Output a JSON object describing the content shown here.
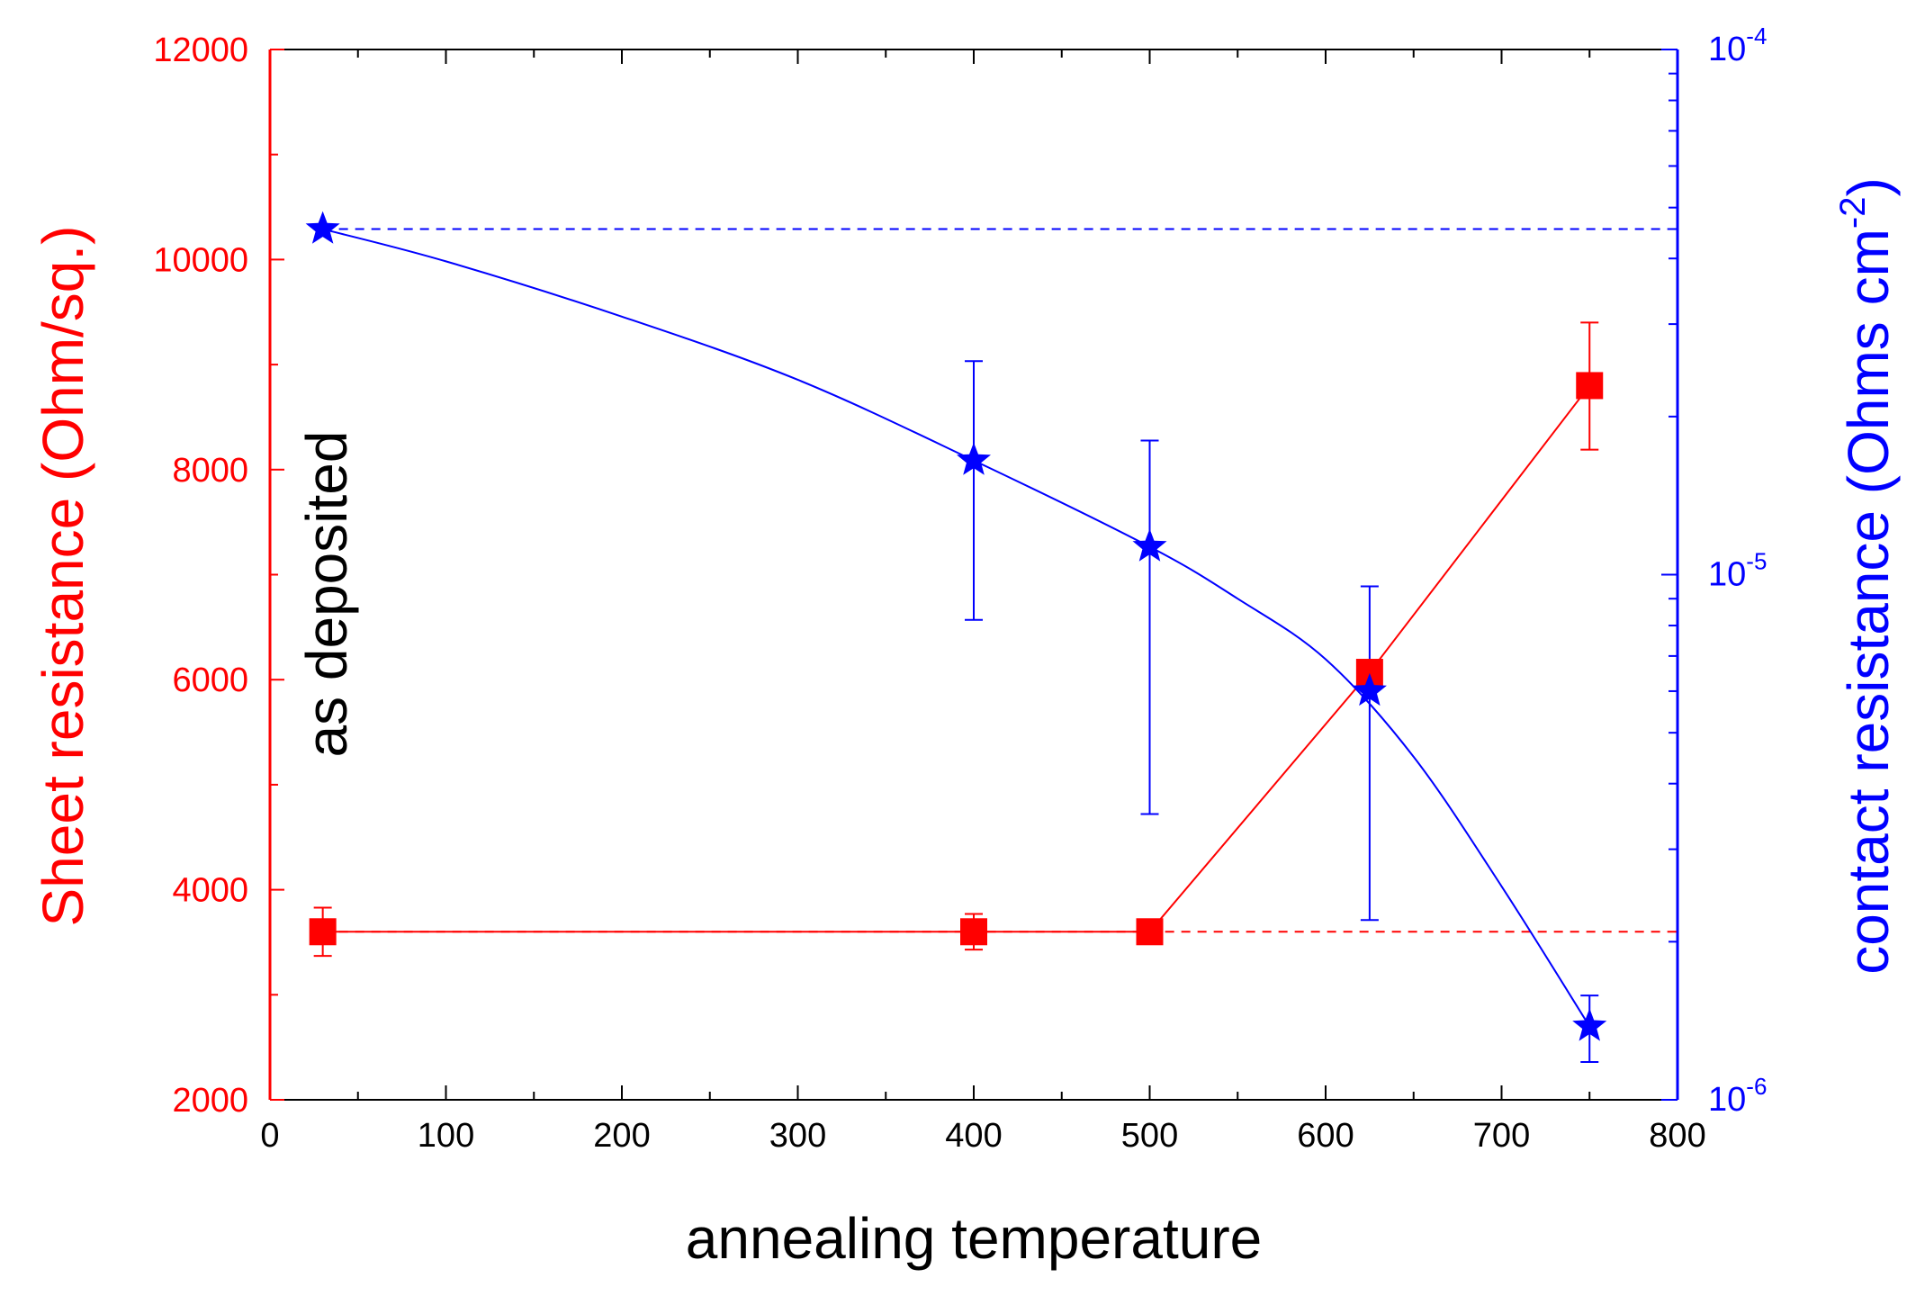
{
  "chart_data": {
    "type": "scatter",
    "title": "",
    "xlabel": "annealing temperature",
    "ylabel_left": "Sheet resistance  (Ohm/sq.)",
    "ylabel_right_main": "contact resistance  (Ohms cm",
    "ylabel_right_sup": "-2",
    "ylabel_right_close": ")",
    "annotation": "as deposited",
    "xlim": [
      0,
      800
    ],
    "ylim_left": [
      2000,
      12000
    ],
    "ylim_right": [
      1e-06,
      0.0001
    ],
    "right_axis_scale": "log",
    "x_ticks": [
      0,
      100,
      200,
      300,
      400,
      500,
      600,
      700,
      800
    ],
    "x_tick_labels": [
      "0",
      "100",
      "200",
      "300",
      "400",
      "500",
      "600",
      "700",
      "800"
    ],
    "y_left_ticks": [
      2000,
      4000,
      6000,
      8000,
      10000,
      12000
    ],
    "y_left_tick_labels": [
      "2000",
      "4000",
      "6000",
      "8000",
      "10000",
      "12000"
    ],
    "y_right_ticks": [
      {
        "value": 1e-06,
        "base": "10",
        "exp": "-6"
      },
      {
        "value": 1e-05,
        "base": "10",
        "exp": "-5"
      },
      {
        "value": 0.0001,
        "base": "10",
        "exp": "-4"
      }
    ],
    "series": [
      {
        "name": "Sheet resistance",
        "axis": "left",
        "marker": "square",
        "color": "#ff0000",
        "x": [
          30,
          400,
          500,
          625,
          750
        ],
        "values": [
          3600,
          3600,
          3600,
          6070,
          8800
        ],
        "err_low": [
          3370,
          3430,
          null,
          null,
          8190
        ],
        "err_high": [
          3830,
          3770,
          null,
          null,
          9400
        ],
        "reference_line": 3600
      },
      {
        "name": "Contact resistance",
        "axis": "right",
        "marker": "star",
        "color": "#0000ff",
        "x": [
          30,
          400,
          500,
          625,
          750
        ],
        "values": [
          4.55e-05,
          1.65e-05,
          1.13e-05,
          6e-06,
          1.38e-06
        ],
        "err_low": [
          null,
          8.2e-06,
          3.5e-06,
          2.2e-06,
          1.18e-06
        ],
        "err_high": [
          null,
          2.55e-05,
          1.8e-05,
          9.5e-06,
          1.58e-06
        ],
        "reference_line": 4.55e-05
      }
    ],
    "fit_curve_blue": {
      "x": [
        30,
        100,
        200,
        300,
        400,
        500,
        550,
        600,
        650,
        700,
        750
      ],
      "y": [
        4.55e-05,
        3.95e-05,
        3.1e-05,
        2.35e-05,
        1.65e-05,
        1.13e-05,
        9e-06,
        6.9e-06,
        4.5e-06,
        2.55e-06,
        1.38e-06
      ]
    },
    "colors": {
      "left_axis": "#ff0000",
      "right_axis": "#0000ff",
      "frame": "#000000",
      "annotation": "#000000"
    }
  }
}
